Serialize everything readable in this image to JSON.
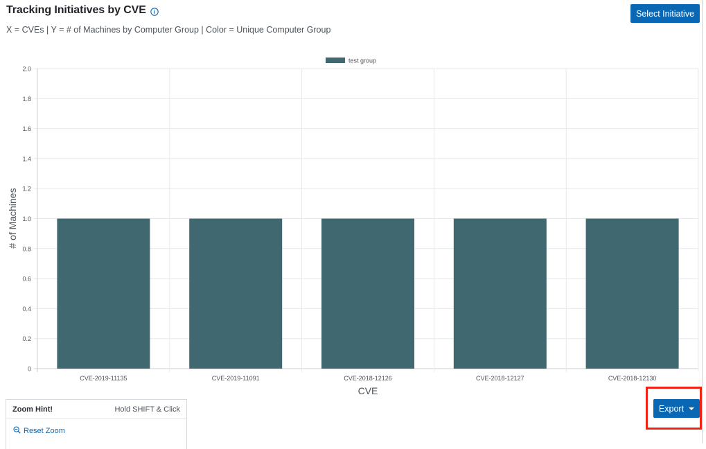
{
  "header": {
    "title": "Tracking Initiatives by CVE",
    "subtitle": "X = CVEs | Y = # of Machines by Computer Group | Color = Unique Computer Group",
    "select_initiative_label": "Select Initiative"
  },
  "colors": {
    "accent": "#0a67b4",
    "series": "#3f6870",
    "highlight": "#ee2417"
  },
  "chart_data": {
    "type": "bar",
    "categories": [
      "CVE-2019-11135",
      "CVE-2019-11091",
      "CVE-2018-12126",
      "CVE-2018-12127",
      "CVE-2018-12130"
    ],
    "series": [
      {
        "name": "test group",
        "values": [
          1,
          1,
          1,
          1,
          1
        ]
      }
    ],
    "xlabel": "CVE",
    "ylabel": "# of Machines",
    "ylim": [
      0,
      2
    ],
    "yticks": [
      "0",
      "0.2",
      "0.4",
      "0.6",
      "0.8",
      "1.0",
      "1.2",
      "1.4",
      "1.6",
      "1.8",
      "2.0"
    ],
    "grid": true,
    "legend_position": "top-center"
  },
  "zoom": {
    "title": "Zoom Hint!",
    "hint": "Hold SHIFT & Click",
    "reset_label": "Reset Zoom"
  },
  "export": {
    "label": "Export"
  }
}
